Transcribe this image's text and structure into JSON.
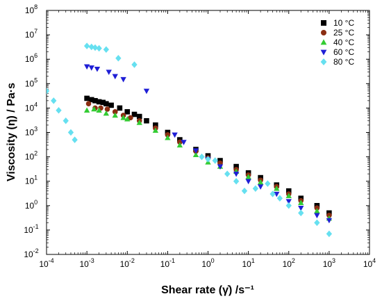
{
  "chart_data": {
    "type": "scatter",
    "x_scale": "log",
    "y_scale": "log",
    "xlim": [
      0.0001,
      10000
    ],
    "ylim": [
      0.01,
      100000000
    ],
    "xlabel": "Shear rate (γ̇) /s⁻¹",
    "ylabel": "Viscosity (η) / Pa·s",
    "x_tick_exponents": [
      -4,
      -3,
      -2,
      -1,
      0,
      1,
      2,
      3,
      4
    ],
    "y_tick_exponents": [
      -2,
      -1,
      0,
      1,
      2,
      3,
      4,
      5,
      6,
      7,
      8
    ],
    "grid": false,
    "legend_position": "top-right",
    "series": [
      {
        "name": "10 °C",
        "marker": "square",
        "color": "#000000",
        "points": [
          [
            0.001,
            25000
          ],
          [
            0.0013,
            22000
          ],
          [
            0.0016,
            20000
          ],
          [
            0.002,
            18000
          ],
          [
            0.0025,
            17000
          ],
          [
            0.003,
            15000
          ],
          [
            0.004,
            13000
          ],
          [
            0.0065,
            10000
          ],
          [
            0.01,
            7000
          ],
          [
            0.015,
            5500
          ],
          [
            0.02,
            4500
          ],
          [
            0.03,
            3000
          ],
          [
            0.05,
            2000
          ],
          [
            0.1,
            1000
          ],
          [
            0.2,
            500
          ],
          [
            0.5,
            200
          ],
          [
            1,
            110
          ],
          [
            2,
            70
          ],
          [
            5,
            40
          ],
          [
            10,
            22
          ],
          [
            20,
            14
          ],
          [
            50,
            7
          ],
          [
            100,
            4
          ],
          [
            200,
            2
          ],
          [
            500,
            1
          ],
          [
            1000,
            0.5
          ]
        ]
      },
      {
        "name": "25 °C",
        "marker": "circle",
        "color": "#8b2e12",
        "points": [
          [
            0.0011,
            15000
          ],
          [
            0.0016,
            10000
          ],
          [
            0.0022,
            10000
          ],
          [
            0.0032,
            9000
          ],
          [
            0.005,
            7000
          ],
          [
            0.008,
            5000
          ],
          [
            0.012,
            4000
          ],
          [
            0.02,
            3000
          ],
          [
            0.05,
            1500
          ],
          [
            0.1,
            800
          ],
          [
            0.2,
            400
          ],
          [
            0.5,
            170
          ],
          [
            1,
            90
          ],
          [
            2,
            55
          ],
          [
            5,
            30
          ],
          [
            10,
            18
          ],
          [
            20,
            11
          ],
          [
            50,
            6
          ],
          [
            100,
            3
          ],
          [
            200,
            1.6
          ],
          [
            500,
            0.8
          ],
          [
            1000,
            0.4
          ]
        ]
      },
      {
        "name": "40 °C",
        "marker": "triangle-up",
        "color": "#33cc33",
        "points": [
          [
            0.001,
            8000
          ],
          [
            0.0015,
            9000
          ],
          [
            0.002,
            8000
          ],
          [
            0.003,
            6000
          ],
          [
            0.005,
            5000
          ],
          [
            0.008,
            4000
          ],
          [
            0.01,
            3500
          ],
          [
            0.02,
            2500
          ],
          [
            0.05,
            1200
          ],
          [
            0.1,
            600
          ],
          [
            0.2,
            300
          ],
          [
            0.5,
            120
          ],
          [
            1,
            60
          ],
          [
            2,
            40
          ],
          [
            5,
            25
          ],
          [
            10,
            15
          ],
          [
            20,
            9
          ],
          [
            50,
            5
          ],
          [
            100,
            2.5
          ],
          [
            200,
            1.3
          ],
          [
            500,
            0.6
          ],
          [
            1000,
            0.3
          ]
        ]
      },
      {
        "name": "60 °C",
        "marker": "triangle-down",
        "color": "#1f1fd6",
        "points": [
          [
            0.001,
            500000
          ],
          [
            0.0013,
            450000
          ],
          [
            0.0018,
            400000
          ],
          [
            0.0035,
            300000
          ],
          [
            0.005,
            200000
          ],
          [
            0.008,
            150000
          ],
          [
            0.03,
            50000
          ],
          [
            0.15,
            800
          ],
          [
            0.25,
            400
          ],
          [
            0.5,
            180
          ],
          [
            1,
            80
          ],
          [
            2,
            40
          ],
          [
            5,
            20
          ],
          [
            10,
            10
          ],
          [
            20,
            6
          ],
          [
            50,
            3
          ],
          [
            100,
            1.5
          ],
          [
            200,
            0.8
          ],
          [
            500,
            0.4
          ],
          [
            1000,
            0.25
          ]
        ]
      },
      {
        "name": "80 °C",
        "marker": "diamond",
        "color": "#66e0f0",
        "points": [
          [
            0.0001,
            50000
          ],
          [
            0.00015,
            20000
          ],
          [
            0.0002,
            8000
          ],
          [
            0.0003,
            3000
          ],
          [
            0.0004,
            1000
          ],
          [
            0.0005,
            500
          ],
          [
            0.001,
            3500000
          ],
          [
            0.0013,
            3200000
          ],
          [
            0.0016,
            3000000
          ],
          [
            0.002,
            2800000
          ],
          [
            0.003,
            2500000
          ],
          [
            0.006,
            1100000
          ],
          [
            0.015,
            600000
          ],
          [
            0.7,
            100
          ],
          [
            1,
            80
          ],
          [
            1.5,
            70
          ],
          [
            3,
            20
          ],
          [
            5,
            10
          ],
          [
            8,
            4
          ],
          [
            15,
            5
          ],
          [
            30,
            8
          ],
          [
            40,
            3
          ],
          [
            60,
            2
          ],
          [
            100,
            1
          ],
          [
            200,
            0.5
          ],
          [
            500,
            0.2
          ],
          [
            1000,
            0.07
          ]
        ]
      }
    ]
  }
}
